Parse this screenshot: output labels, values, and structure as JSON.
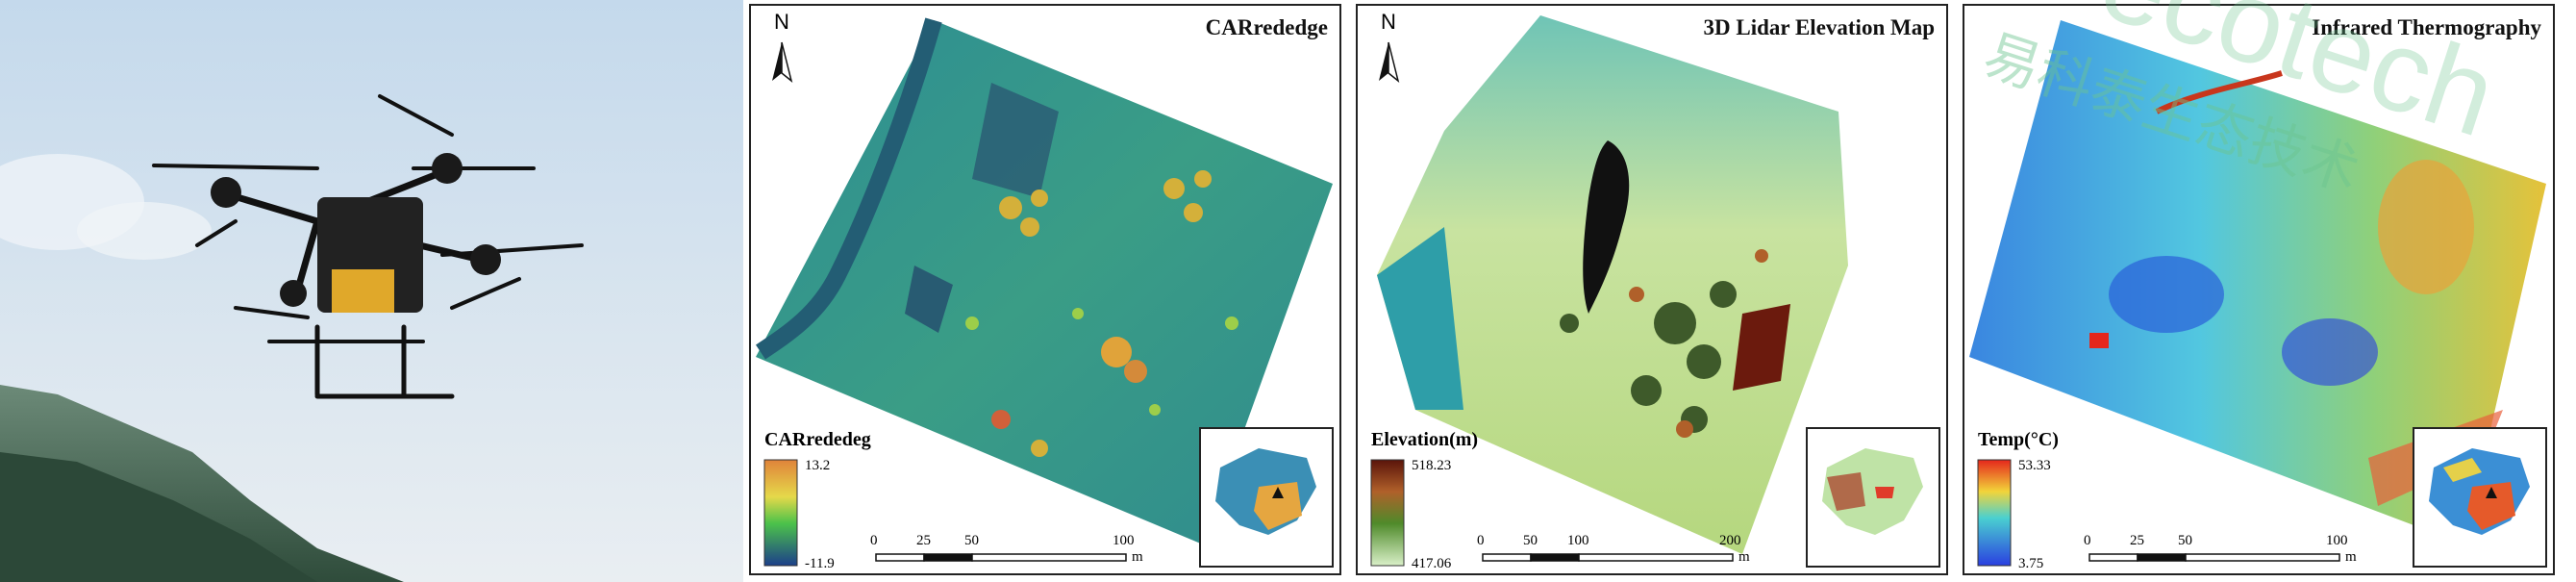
{
  "panels": [
    {
      "title": "CARrededge",
      "legend_title": "CARrededeg",
      "legend_max": "13.2",
      "legend_min": "-11.9",
      "scale_ticks": [
        "0",
        "25",
        "50",
        "100"
      ],
      "scale_unit": "m"
    },
    {
      "title": "3D Lidar Elevation Map",
      "legend_title": "Elevation(m)",
      "legend_max": "518.23",
      "legend_min": "417.06",
      "scale_ticks": [
        "0",
        "50",
        "100",
        "200"
      ],
      "scale_unit": "m"
    },
    {
      "title": "Infrared Thermography",
      "legend_title": "Temp(°C)",
      "legend_max": "53.33",
      "legend_min": "3.75",
      "scale_ticks": [
        "0",
        "25",
        "50",
        "100"
      ],
      "scale_unit": "m"
    }
  ],
  "north_label": "N",
  "watermark": "易科泰生态技术",
  "watermark_latin": "ecotech",
  "colors": {
    "sky_top": "#c9dcee",
    "mountain": "#4a6b57",
    "carre_base": "#2a8f9a",
    "elev_high": "#6b1a0d",
    "elev_low": "#d9f0c8",
    "temp_high": "#e5261c",
    "temp_low": "#2a3fe0",
    "watermark": "#6cc58f"
  }
}
